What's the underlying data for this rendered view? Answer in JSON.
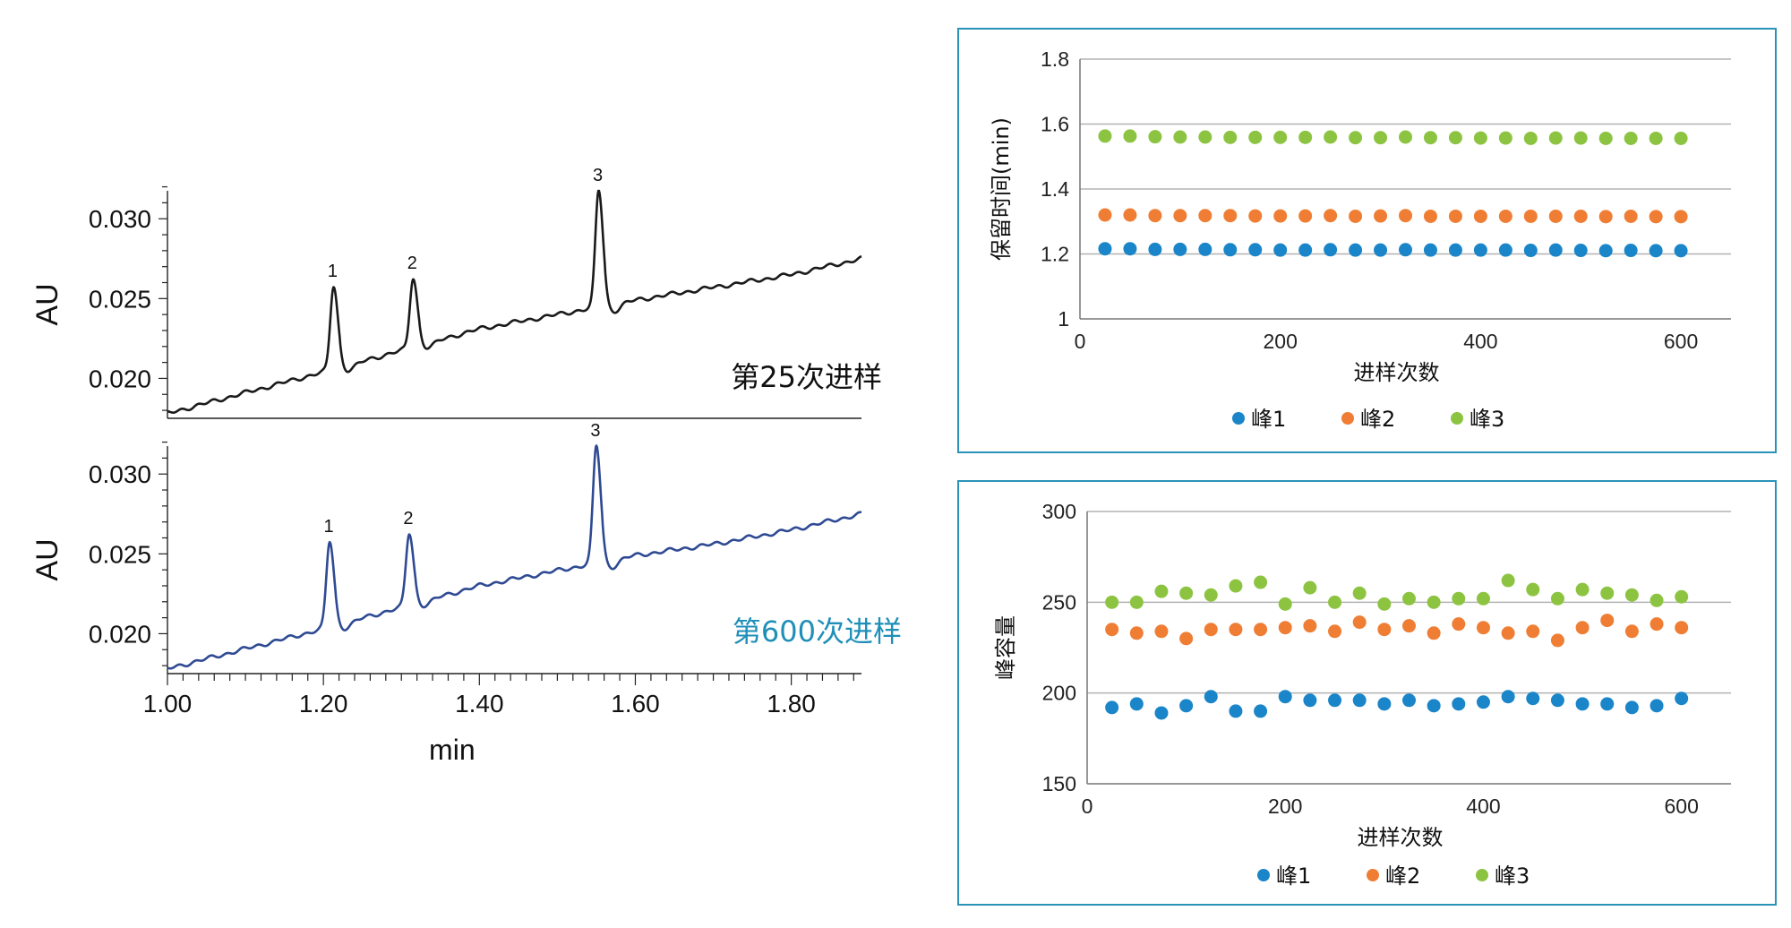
{
  "colors": {
    "trace_top": "#1a1a1a",
    "trace_bottom": "#2f4a93",
    "label_bottom": "#1f8fb8",
    "frame": "#2a93b8",
    "peak1": "#1a85c8",
    "peak2": "#ef7e34",
    "peak3": "#8cc442",
    "grid": "#b3b3b3"
  },
  "chart_data": [
    {
      "type": "line",
      "title": "",
      "xlabel": "min",
      "xlim": [
        1.0,
        1.89
      ],
      "x_ticks": [
        "1.00",
        "1.20",
        "1.40",
        "1.60",
        "1.80"
      ],
      "panels": [
        {
          "ylabel": "AU",
          "ylim": [
            0.0175,
            0.0322
          ],
          "y_ticks": [
            "0.020",
            "0.025",
            "0.030"
          ],
          "label": "第25次进样",
          "series": [
            {
              "name": "",
              "baseline": [
                [
                  1.0,
                  0.0178
                ],
                [
                  1.2,
                  0.0204
                ],
                [
                  1.4,
                  0.0231
                ],
                [
                  1.6,
                  0.0249
                ],
                [
                  1.7,
                  0.0257
                ],
                [
                  1.8,
                  0.0265
                ],
                [
                  1.89,
                  0.0275
                ]
              ],
              "peaks": [
                {
                  "label": "1",
                  "rt": 1.213,
                  "apex": 0.0258
                },
                {
                  "label": "2",
                  "rt": 1.315,
                  "apex": 0.0263
                },
                {
                  "label": "3",
                  "rt": 1.553,
                  "apex": 0.0318
                }
              ]
            }
          ]
        },
        {
          "ylabel": "AU",
          "ylim": [
            0.0175,
            0.0322
          ],
          "y_ticks": [
            "0.020",
            "0.025",
            "0.030"
          ],
          "label": "第600次进样",
          "series": [
            {
              "name": "",
              "baseline": [
                [
                  1.0,
                  0.0178
                ],
                [
                  1.2,
                  0.0203
                ],
                [
                  1.4,
                  0.023
                ],
                [
                  1.6,
                  0.0249
                ],
                [
                  1.7,
                  0.0256
                ],
                [
                  1.8,
                  0.0265
                ],
                [
                  1.89,
                  0.0275
                ]
              ],
              "peaks": [
                {
                  "label": "1",
                  "rt": 1.208,
                  "apex": 0.0258
                },
                {
                  "label": "2",
                  "rt": 1.31,
                  "apex": 0.0263
                },
                {
                  "label": "3",
                  "rt": 1.55,
                  "apex": 0.0318
                }
              ]
            }
          ]
        }
      ]
    },
    {
      "type": "scatter",
      "title": "",
      "xlabel": "进样次数",
      "ylabel": "保留时间(min)",
      "xlim": [
        0,
        650
      ],
      "ylim": [
        1.0,
        1.8
      ],
      "x_ticks": [
        0,
        200,
        400,
        600
      ],
      "y_ticks": [
        1,
        1.2,
        1.4,
        1.6,
        1.8
      ],
      "y_tick_labels": [
        "1",
        "1.2",
        "1.4",
        "1.6",
        "1.8"
      ],
      "legend": "bottom",
      "grid": true,
      "x": [
        25,
        50,
        75,
        100,
        125,
        150,
        175,
        200,
        225,
        250,
        275,
        300,
        325,
        350,
        375,
        400,
        425,
        450,
        475,
        500,
        525,
        550,
        575,
        600
      ],
      "series": [
        {
          "name": "峰1",
          "values": [
            1.216,
            1.216,
            1.214,
            1.214,
            1.214,
            1.213,
            1.213,
            1.212,
            1.212,
            1.213,
            1.212,
            1.212,
            1.213,
            1.212,
            1.212,
            1.212,
            1.212,
            1.211,
            1.212,
            1.211,
            1.21,
            1.211,
            1.21,
            1.21
          ]
        },
        {
          "name": "峰2",
          "values": [
            1.32,
            1.32,
            1.318,
            1.318,
            1.318,
            1.318,
            1.317,
            1.317,
            1.317,
            1.318,
            1.316,
            1.317,
            1.318,
            1.316,
            1.316,
            1.316,
            1.316,
            1.316,
            1.316,
            1.316,
            1.315,
            1.316,
            1.315,
            1.315
          ]
        },
        {
          "name": "峰3",
          "values": [
            1.563,
            1.563,
            1.561,
            1.56,
            1.56,
            1.559,
            1.559,
            1.559,
            1.559,
            1.56,
            1.558,
            1.558,
            1.56,
            1.558,
            1.558,
            1.557,
            1.557,
            1.556,
            1.557,
            1.557,
            1.556,
            1.556,
            1.556,
            1.556
          ]
        }
      ]
    },
    {
      "type": "scatter",
      "title": "",
      "xlabel": "进样次数",
      "ylabel": "峰容量",
      "xlim": [
        0,
        650
      ],
      "ylim": [
        150,
        300
      ],
      "x_ticks": [
        0,
        200,
        400,
        600
      ],
      "y_ticks": [
        150,
        200,
        250,
        300
      ],
      "y_tick_labels": [
        "150",
        "200",
        "250",
        "300"
      ],
      "legend": "bottom",
      "grid": true,
      "x": [
        25,
        50,
        75,
        100,
        125,
        150,
        175,
        200,
        225,
        250,
        275,
        300,
        325,
        350,
        375,
        400,
        425,
        450,
        475,
        500,
        525,
        550,
        575,
        600
      ],
      "series": [
        {
          "name": "峰1",
          "values": [
            192,
            194,
            189,
            193,
            198,
            190,
            190,
            198,
            196,
            196,
            196,
            194,
            196,
            193,
            194,
            195,
            198,
            197,
            196,
            194,
            194,
            192,
            193,
            197
          ]
        },
        {
          "name": "峰2",
          "values": [
            235,
            233,
            234,
            230,
            235,
            235,
            235,
            236,
            237,
            234,
            239,
            235,
            237,
            233,
            238,
            236,
            233,
            234,
            229,
            236,
            240,
            234,
            238,
            236
          ]
        },
        {
          "name": "峰3",
          "values": [
            250,
            250,
            256,
            255,
            254,
            259,
            261,
            249,
            258,
            250,
            255,
            249,
            252,
            250,
            252,
            252,
            262,
            257,
            252,
            257,
            255,
            254,
            251,
            253
          ]
        }
      ]
    }
  ]
}
